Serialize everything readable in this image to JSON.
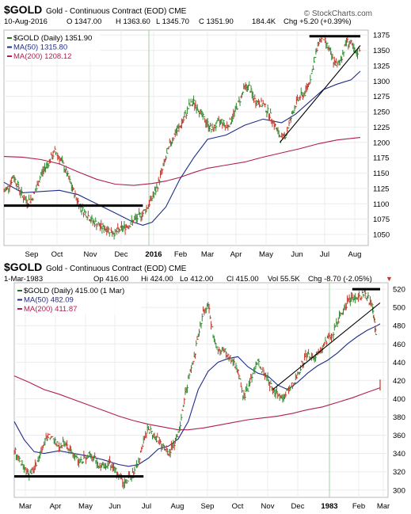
{
  "chart_data": [
    {
      "type": "line",
      "symbol": "$GOLD",
      "title": "Gold - Continuous Contract (EOD)",
      "exchange": "CME",
      "watermark": "© StockCharts.com",
      "date": "10-Aug-2016",
      "quote": {
        "open": "O 1347.00",
        "high": "H 1363.60",
        "low": "L 1345.70",
        "close": "C 1351.90",
        "volume": "184.4K",
        "change": "Chg +5.20 (+0.39%)"
      },
      "legend": [
        {
          "label": "$GOLD (Daily) 1351.90",
          "color": "#2a6e2a"
        },
        {
          "label": "MA(50) 1315.80",
          "color": "#1f2d8a"
        },
        {
          "label": "MA(200) 1208.12",
          "color": "#b21e4b"
        }
      ],
      "x_ticks": [
        "Sep",
        "Oct",
        "Nov",
        "Dec",
        "2016",
        "Feb",
        "Mar",
        "Apr",
        "May",
        "Jun",
        "Jul",
        "Aug"
      ],
      "bold_ticks": [
        "2016"
      ],
      "y_ticks": [
        1050,
        1075,
        1100,
        1125,
        1150,
        1175,
        1200,
        1225,
        1250,
        1275,
        1300,
        1325,
        1350,
        1375
      ],
      "ylim": [
        1032,
        1383
      ],
      "price_path": [
        [
          0,
          1120
        ],
        [
          5,
          1128
        ],
        [
          10,
          1145
        ],
        [
          15,
          1130
        ],
        [
          20,
          1112
        ],
        [
          25,
          1104
        ],
        [
          30,
          1108
        ],
        [
          35,
          1125
        ],
        [
          40,
          1148
        ],
        [
          45,
          1160
        ],
        [
          50,
          1172
        ],
        [
          55,
          1185
        ],
        [
          60,
          1175
        ],
        [
          65,
          1160
        ],
        [
          70,
          1140
        ],
        [
          75,
          1120
        ],
        [
          80,
          1103
        ],
        [
          85,
          1090
        ],
        [
          90,
          1082
        ],
        [
          95,
          1072
        ],
        [
          100,
          1068
        ],
        [
          105,
          1062
        ],
        [
          110,
          1060
        ],
        [
          115,
          1056
        ],
        [
          120,
          1052
        ],
        [
          125,
          1058
        ],
        [
          130,
          1062
        ],
        [
          135,
          1066
        ],
        [
          140,
          1072
        ],
        [
          145,
          1078
        ],
        [
          150,
          1085
        ],
        [
          155,
          1095
        ],
        [
          160,
          1110
        ],
        [
          165,
          1125
        ],
        [
          170,
          1150
        ],
        [
          175,
          1175
        ],
        [
          180,
          1200
        ],
        [
          185,
          1215
        ],
        [
          190,
          1225
        ],
        [
          195,
          1240
        ],
        [
          200,
          1260
        ],
        [
          205,
          1265
        ],
        [
          210,
          1255
        ],
        [
          215,
          1240
        ],
        [
          220,
          1230
        ],
        [
          225,
          1220
        ],
        [
          230,
          1230
        ],
        [
          235,
          1235
        ],
        [
          240,
          1225
        ],
        [
          245,
          1235
        ],
        [
          250,
          1252
        ],
        [
          255,
          1270
        ],
        [
          260,
          1290
        ],
        [
          265,
          1290
        ],
        [
          270,
          1270
        ],
        [
          275,
          1265
        ],
        [
          280,
          1262
        ],
        [
          285,
          1250
        ],
        [
          290,
          1238
        ],
        [
          295,
          1218
        ],
        [
          300,
          1205
        ],
        [
          305,
          1215
        ],
        [
          310,
          1240
        ],
        [
          315,
          1262
        ],
        [
          320,
          1275
        ],
        [
          325,
          1280
        ],
        [
          330,
          1300
        ],
        [
          335,
          1330
        ],
        [
          340,
          1365
        ],
        [
          345,
          1370
        ],
        [
          350,
          1355
        ],
        [
          355,
          1335
        ],
        [
          360,
          1325
        ],
        [
          365,
          1340
        ],
        [
          370,
          1365
        ],
        [
          375,
          1360
        ],
        [
          380,
          1342
        ],
        [
          385,
          1356
        ]
      ],
      "ma50_path": [
        [
          0,
          1135
        ],
        [
          20,
          1118
        ],
        [
          40,
          1120
        ],
        [
          60,
          1122
        ],
        [
          80,
          1115
        ],
        [
          100,
          1100
        ],
        [
          120,
          1085
        ],
        [
          140,
          1070
        ],
        [
          150,
          1065
        ],
        [
          160,
          1070
        ],
        [
          175,
          1095
        ],
        [
          190,
          1140
        ],
        [
          205,
          1175
        ],
        [
          220,
          1205
        ],
        [
          240,
          1212
        ],
        [
          260,
          1228
        ],
        [
          280,
          1238
        ],
        [
          300,
          1232
        ],
        [
          315,
          1246
        ],
        [
          330,
          1266
        ],
        [
          345,
          1286
        ],
        [
          360,
          1295
        ],
        [
          375,
          1302
        ],
        [
          385,
          1316
        ]
      ],
      "ma200_path": [
        [
          0,
          1177
        ],
        [
          20,
          1176
        ],
        [
          40,
          1172
        ],
        [
          60,
          1165
        ],
        [
          80,
          1152
        ],
        [
          100,
          1140
        ],
        [
          120,
          1132
        ],
        [
          140,
          1130
        ],
        [
          160,
          1133
        ],
        [
          175,
          1137
        ],
        [
          190,
          1143
        ],
        [
          205,
          1151
        ],
        [
          220,
          1158
        ],
        [
          240,
          1163
        ],
        [
          260,
          1168
        ],
        [
          280,
          1176
        ],
        [
          300,
          1183
        ],
        [
          320,
          1190
        ],
        [
          340,
          1198
        ],
        [
          360,
          1204
        ],
        [
          385,
          1208
        ]
      ],
      "annotations": [
        {
          "kind": "support",
          "from": [
            0,
            1097
          ],
          "to": [
            150,
            1097
          ]
        },
        {
          "kind": "resistance",
          "from": [
            330,
            1373
          ],
          "to": [
            385,
            1373
          ]
        },
        {
          "kind": "trendline",
          "from": [
            298,
            1200
          ],
          "to": [
            385,
            1358
          ]
        }
      ]
    },
    {
      "type": "line",
      "symbol": "$GOLD",
      "title": "Gold - Continuous Contract (EOD)",
      "exchange": "CME",
      "date": "1-Mar-1983",
      "quote": {
        "open": "Op 416.00",
        "high": "Hi 424.00",
        "low": "Lo 412.00",
        "close": "Cl 415.00",
        "volume": "Vol 55.5K",
        "change": "Chg -8.70 (-2.05%)"
      },
      "change_badge": "▼",
      "legend": [
        {
          "label": "$GOLD (Daily) 415.00 (1 Mar)",
          "color": "#2a6e2a"
        },
        {
          "label": "MA(50) 482.09",
          "color": "#1f2d8a"
        },
        {
          "label": "MA(200) 411.87",
          "color": "#b21e4b"
        }
      ],
      "x_ticks": [
        "Mar",
        "Apr",
        "May",
        "Jun",
        "Jul",
        "Aug",
        "Sep",
        "Oct",
        "Nov",
        "Dec",
        "1983",
        "Feb",
        "Mar"
      ],
      "bold_ticks": [
        "1983"
      ],
      "y_ticks": [
        300,
        320,
        340,
        360,
        380,
        400,
        420,
        440,
        460,
        480,
        500,
        520
      ],
      "ylim": [
        292,
        527
      ],
      "price_path": [
        [
          0,
          345
        ],
        [
          5,
          335
        ],
        [
          10,
          322
        ],
        [
          15,
          318
        ],
        [
          20,
          322
        ],
        [
          25,
          335
        ],
        [
          30,
          350
        ],
        [
          35,
          360
        ],
        [
          40,
          355
        ],
        [
          45,
          348
        ],
        [
          50,
          352
        ],
        [
          55,
          345
        ],
        [
          60,
          338
        ],
        [
          65,
          330
        ],
        [
          70,
          335
        ],
        [
          75,
          340
        ],
        [
          80,
          335
        ],
        [
          85,
          328
        ],
        [
          90,
          325
        ],
        [
          95,
          330
        ],
        [
          100,
          322
        ],
        [
          105,
          318
        ],
        [
          110,
          308
        ],
        [
          115,
          312
        ],
        [
          120,
          318
        ],
        [
          125,
          330
        ],
        [
          130,
          355
        ],
        [
          135,
          368
        ],
        [
          140,
          360
        ],
        [
          145,
          355
        ],
        [
          150,
          345
        ],
        [
          155,
          340
        ],
        [
          160,
          350
        ],
        [
          165,
          360
        ],
        [
          170,
          395
        ],
        [
          175,
          420
        ],
        [
          180,
          440
        ],
        [
          185,
          470
        ],
        [
          190,
          495
        ],
        [
          195,
          505
        ],
        [
          200,
          470
        ],
        [
          205,
          450
        ],
        [
          210,
          455
        ],
        [
          215,
          450
        ],
        [
          220,
          440
        ],
        [
          225,
          430
        ],
        [
          230,
          400
        ],
        [
          235,
          410
        ],
        [
          240,
          430
        ],
        [
          245,
          440
        ],
        [
          250,
          430
        ],
        [
          255,
          420
        ],
        [
          260,
          410
        ],
        [
          265,
          405
        ],
        [
          270,
          400
        ],
        [
          275,
          410
        ],
        [
          280,
          415
        ],
        [
          285,
          425
        ],
        [
          290,
          440
        ],
        [
          295,
          450
        ],
        [
          300,
          445
        ],
        [
          305,
          450
        ],
        [
          310,
          455
        ],
        [
          315,
          465
        ],
        [
          320,
          470
        ],
        [
          325,
          485
        ],
        [
          330,
          495
        ],
        [
          335,
          505
        ],
        [
          340,
          510
        ],
        [
          345,
          508
        ],
        [
          350,
          515
        ],
        [
          355,
          512
        ],
        [
          360,
          500
        ],
        [
          362,
          485
        ],
        [
          364,
          470
        ]
      ],
      "last_close": [
        368,
        415
      ],
      "ma50_path": [
        [
          0,
          375
        ],
        [
          10,
          355
        ],
        [
          20,
          342
        ],
        [
          30,
          340
        ],
        [
          45,
          343
        ],
        [
          60,
          340
        ],
        [
          75,
          337
        ],
        [
          90,
          333
        ],
        [
          105,
          328
        ],
        [
          115,
          326
        ],
        [
          125,
          328
        ],
        [
          135,
          335
        ],
        [
          145,
          345
        ],
        [
          155,
          348
        ],
        [
          165,
          356
        ],
        [
          175,
          375
        ],
        [
          185,
          410
        ],
        [
          195,
          430
        ],
        [
          205,
          440
        ],
        [
          215,
          444
        ],
        [
          225,
          446
        ],
        [
          235,
          435
        ],
        [
          245,
          428
        ],
        [
          255,
          425
        ],
        [
          265,
          415
        ],
        [
          275,
          410
        ],
        [
          285,
          418
        ],
        [
          295,
          428
        ],
        [
          305,
          436
        ],
        [
          315,
          442
        ],
        [
          325,
          450
        ],
        [
          335,
          460
        ],
        [
          345,
          468
        ],
        [
          355,
          475
        ],
        [
          365,
          480
        ],
        [
          368,
          482
        ]
      ],
      "ma200_path": [
        [
          0,
          425
        ],
        [
          15,
          418
        ],
        [
          30,
          410
        ],
        [
          45,
          405
        ],
        [
          60,
          399
        ],
        [
          75,
          393
        ],
        [
          90,
          387
        ],
        [
          105,
          381
        ],
        [
          120,
          376
        ],
        [
          135,
          372
        ],
        [
          150,
          369
        ],
        [
          165,
          366
        ],
        [
          175,
          366
        ],
        [
          190,
          368
        ],
        [
          205,
          371
        ],
        [
          220,
          374
        ],
        [
          235,
          377
        ],
        [
          250,
          379
        ],
        [
          265,
          381
        ],
        [
          280,
          384
        ],
        [
          295,
          388
        ],
        [
          310,
          391
        ],
        [
          325,
          396
        ],
        [
          340,
          401
        ],
        [
          355,
          407
        ],
        [
          368,
          412
        ]
      ],
      "annotations": [
        {
          "kind": "support",
          "from": [
            0,
            315
          ],
          "to": [
            130,
            315
          ]
        },
        {
          "kind": "resistance",
          "from": [
            340,
            520
          ],
          "to": [
            368,
            520
          ]
        },
        {
          "kind": "trendline",
          "from": [
            260,
            410
          ],
          "to": [
            368,
            505
          ]
        }
      ]
    }
  ]
}
